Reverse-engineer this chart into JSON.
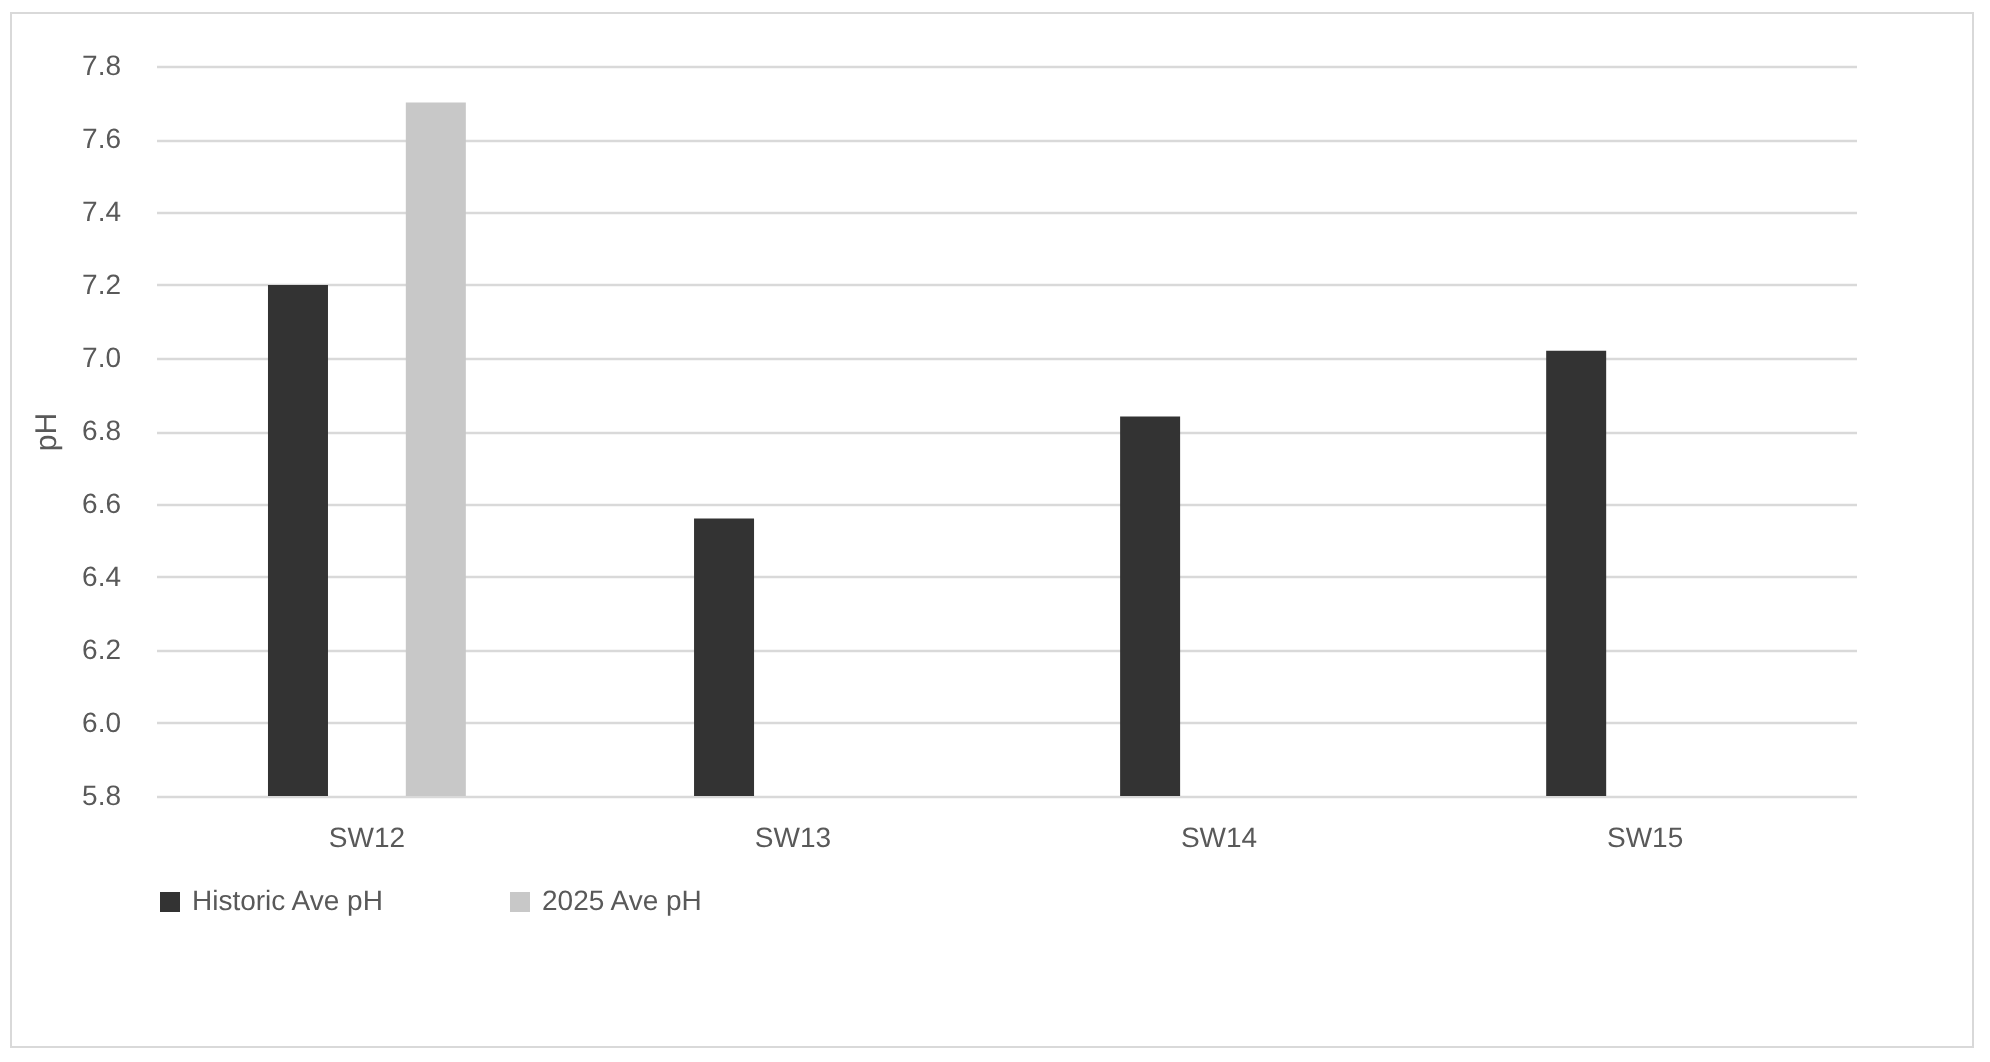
{
  "chart_data": {
    "type": "bar",
    "ylabel": "pH",
    "categories": [
      "SW12",
      "SW13",
      "SW14",
      "SW15"
    ],
    "series": [
      {
        "name": "Historic Ave pH",
        "color": "#333333",
        "values": [
          7.2,
          6.56,
          6.84,
          7.02
        ]
      },
      {
        "name": "2025 Ave pH",
        "color": "#c8c8c8",
        "values": [
          7.7,
          null,
          null,
          null
        ]
      }
    ],
    "ylim": [
      5.8,
      7.8
    ],
    "yticks": [
      5.8,
      {
        "value": 6,
        "label": "6.0"
      },
      6.2,
      6.4,
      6.6,
      6.8,
      {
        "value": 7,
        "label": "7.0"
      },
      7.2,
      7.4,
      7.6,
      7.8
    ],
    "grid": "y",
    "legend": "bottom"
  }
}
